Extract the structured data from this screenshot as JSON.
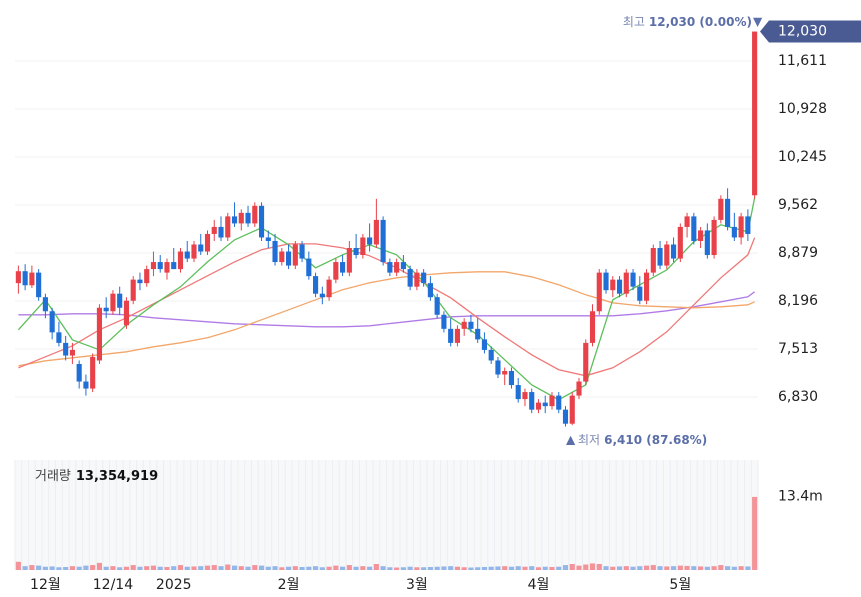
{
  "chart_data": [
    {
      "type": "candlestick",
      "categories": [
        null,
        null,
        null,
        null,
        "12월",
        null,
        null,
        null,
        null,
        null,
        null,
        null,
        null,
        null,
        "12/14",
        null,
        null,
        null,
        null,
        null,
        null,
        null,
        null,
        "2025",
        null,
        null,
        null,
        null,
        null,
        null,
        null,
        null,
        null,
        null,
        null,
        null,
        null,
        null,
        null,
        null,
        "2월",
        null,
        null,
        null,
        null,
        null,
        null,
        null,
        null,
        null,
        null,
        null,
        null,
        null,
        null,
        null,
        null,
        null,
        null,
        "3월",
        null,
        null,
        null,
        null,
        null,
        null,
        null,
        null,
        null,
        null,
        null,
        null,
        null,
        null,
        null,
        null,
        null,
        "4월",
        null,
        null,
        null,
        null,
        null,
        null,
        null,
        null,
        null,
        null,
        null,
        null,
        null,
        null,
        null,
        null,
        null,
        null,
        null,
        null,
        "5월",
        null,
        null,
        null,
        null,
        null,
        null,
        null,
        null,
        null,
        null,
        null
      ],
      "open": [
        8450,
        8620,
        8420,
        8600,
        8250,
        8050,
        7750,
        7600,
        7420,
        7300,
        7050,
        6950,
        7350,
        8100,
        8050,
        8300,
        7850,
        8200,
        8500,
        8450,
        8650,
        8750,
        8600,
        8750,
        8650,
        8900,
        8800,
        9000,
        8900,
        9150,
        9250,
        9100,
        9400,
        9300,
        9450,
        9300,
        9550,
        9100,
        9050,
        8750,
        8900,
        8700,
        9000,
        8800,
        8550,
        8300,
        8250,
        8500,
        8750,
        8600,
        8950,
        8850,
        9100,
        9000,
        9350,
        8750,
        8600,
        8750,
        8650,
        8400,
        8600,
        8450,
        8250,
        8000,
        7800,
        7600,
        7800,
        7900,
        7800,
        7650,
        7500,
        7350,
        7150,
        7200,
        7000,
        6800,
        6900,
        6650,
        6750,
        6700,
        6850,
        6650,
        6450,
        6850,
        7050,
        7600,
        8050,
        8600,
        8350,
        8500,
        8300,
        8600,
        8400,
        8200,
        8600,
        8950,
        8700,
        9000,
        8800,
        9250,
        9400,
        9050,
        9200,
        8850,
        9350,
        9650,
        9250,
        9100,
        9400,
        9700
      ],
      "high": [
        8700,
        8720,
        8700,
        8650,
        8300,
        8100,
        7900,
        7700,
        7600,
        7350,
        7150,
        7450,
        8150,
        8250,
        8350,
        8400,
        8250,
        8550,
        8600,
        8700,
        8900,
        8850,
        8800,
        8950,
        8950,
        9050,
        9050,
        9150,
        9200,
        9350,
        9400,
        9450,
        9600,
        9500,
        9550,
        9600,
        9600,
        9200,
        9150,
        8950,
        9000,
        9050,
        9050,
        8900,
        8600,
        8400,
        8550,
        8800,
        8850,
        9050,
        9150,
        9150,
        9300,
        9650,
        9400,
        8800,
        8800,
        8850,
        8700,
        8650,
        8650,
        8550,
        8300,
        8050,
        7950,
        7850,
        7950,
        8000,
        7950,
        7750,
        7550,
        7400,
        7250,
        7250,
        7100,
        6950,
        6950,
        6800,
        6850,
        6900,
        6900,
        6700,
        6900,
        7100,
        7650,
        8150,
        8650,
        8650,
        8550,
        8550,
        8650,
        8650,
        8550,
        8650,
        9000,
        9050,
        9050,
        9100,
        9300,
        9450,
        9450,
        9250,
        9300,
        9400,
        9700,
        9800,
        9450,
        9450,
        9500,
        12030
      ],
      "low": [
        8300,
        8350,
        8380,
        8200,
        7950,
        7650,
        7550,
        7350,
        7300,
        6950,
        6850,
        6900,
        7300,
        7950,
        8000,
        8000,
        7800,
        8150,
        8350,
        8400,
        8550,
        8600,
        8500,
        8650,
        8600,
        8750,
        8750,
        8850,
        8850,
        9050,
        9050,
        9050,
        9250,
        9200,
        9250,
        9250,
        9050,
        8950,
        8700,
        8700,
        8650,
        8650,
        8750,
        8500,
        8250,
        8150,
        8200,
        8450,
        8550,
        8550,
        8800,
        8800,
        8900,
        8950,
        8700,
        8550,
        8550,
        8600,
        8350,
        8350,
        8400,
        8200,
        7950,
        7750,
        7550,
        7550,
        7700,
        7750,
        7600,
        7450,
        7300,
        7100,
        7000,
        6950,
        6750,
        6700,
        6600,
        6600,
        6600,
        6650,
        6600,
        6410,
        6430,
        6800,
        7000,
        7550,
        8000,
        8300,
        8250,
        8250,
        8250,
        8350,
        8150,
        8150,
        8550,
        8650,
        8650,
        8750,
        8750,
        9100,
        9000,
        8950,
        8800,
        8800,
        9300,
        9200,
        9050,
        9000,
        9050,
        9650
      ],
      "close": [
        8620,
        8420,
        8600,
        8250,
        8050,
        7750,
        7600,
        7420,
        7500,
        7050,
        6950,
        7400,
        8100,
        8050,
        8300,
        8100,
        8200,
        8500,
        8450,
        8650,
        8750,
        8650,
        8750,
        8650,
        8900,
        8800,
        9000,
        8900,
        9150,
        9250,
        9100,
        9400,
        9300,
        9450,
        9300,
        9550,
        9100,
        9050,
        8750,
        8900,
        8700,
        9000,
        8800,
        8550,
        8300,
        8250,
        8500,
        8750,
        8600,
        8950,
        8850,
        9100,
        9000,
        9350,
        8750,
        8600,
        8750,
        8650,
        8400,
        8600,
        8450,
        8250,
        8000,
        7800,
        7600,
        7800,
        7900,
        7800,
        7650,
        7500,
        7350,
        7150,
        7200,
        7000,
        6800,
        6900,
        6650,
        6750,
        6700,
        6850,
        6650,
        6450,
        6850,
        7050,
        7600,
        8050,
        8600,
        8350,
        8500,
        8300,
        8600,
        8400,
        8200,
        8600,
        8950,
        8700,
        9000,
        8800,
        9250,
        9400,
        9050,
        9200,
        8850,
        9350,
        9650,
        9250,
        9100,
        9400,
        9150,
        12030
      ],
      "colors": {
        "up": "#e8414a",
        "down": "#1f6fd6"
      },
      "ylim": [
        6147,
        12479
      ],
      "yticks": [
        {
          "value": 6830,
          "label": "6,830"
        },
        {
          "value": 7513,
          "label": "7,513"
        },
        {
          "value": 8196,
          "label": "8,196"
        },
        {
          "value": 8879,
          "label": "8,879"
        },
        {
          "value": 9562,
          "label": "9,562"
        },
        {
          "value": 10245,
          "label": "10,245"
        },
        {
          "value": 10928,
          "label": "10,928"
        },
        {
          "value": 11611,
          "label": "11,611"
        }
      ],
      "grid": true,
      "lines": {
        "x": [
          0,
          4,
          8,
          12,
          16,
          20,
          24,
          28,
          32,
          36,
          40,
          44,
          48,
          52,
          56,
          60,
          64,
          68,
          72,
          76,
          80,
          84,
          88,
          92,
          96,
          100,
          104,
          108,
          109
        ],
        "series": [
          {
            "color": "#b07be6",
            "values": [
              7999,
              7999,
              8014,
              8014,
              7999,
              7957,
              7929,
              7900,
              7872,
              7858,
              7843,
              7829,
              7829,
              7843,
              7886,
              7929,
              7971,
              7986,
              7986,
              7986,
              7986,
              7986,
              7986,
              8014,
              8057,
              8113,
              8185,
              8256,
              8327
            ]
          },
          {
            "color": "#f2a66a",
            "values": [
              7274,
              7345,
              7388,
              7431,
              7473,
              7545,
              7601,
              7672,
              7786,
              7929,
              8071,
              8213,
              8355,
              8455,
              8526,
              8568,
              8597,
              8611,
              8611,
              8540,
              8426,
              8284,
              8170,
              8128,
              8113,
              8099,
              8113,
              8142,
              8185
            ]
          },
          {
            "color": "#f07878",
            "values": [
              7246,
              7402,
              7559,
              7786,
              7957,
              8156,
              8355,
              8554,
              8753,
              8924,
              9009,
              9009,
              8952,
              8839,
              8668,
              8455,
              8241,
              7957,
              7687,
              7431,
              7218,
              7132,
              7246,
              7473,
              7758,
              8142,
              8526,
              8853,
              9095
            ]
          },
          {
            "color": "#5cbf5c",
            "values": [
              7786,
              8213,
              7644,
              7502,
              7858,
              8142,
              8398,
              8753,
              9066,
              9237,
              8995,
              8668,
              8853,
              8995,
              8853,
              8469,
              7957,
              7715,
              7360,
              7004,
              6791,
              7004,
              8213,
              8426,
              8639,
              9038,
              9280,
              9180,
              9663
            ]
          }
        ]
      },
      "high_note": {
        "text": "최고",
        "label": "12,030 (0.00%)"
      },
      "low_note": {
        "text": "최저",
        "label": "6,410 (87.68%)"
      },
      "last_price": {
        "value": 12030,
        "label": "12,030"
      }
    },
    {
      "type": "bar",
      "title": "거래량",
      "current": {
        "value": 13354919,
        "label": "13,354,919"
      },
      "values": [
        1500000,
        700000,
        900000,
        800000,
        600000,
        650000,
        500000,
        550000,
        700000,
        600000,
        800000,
        900000,
        1300000,
        600000,
        700000,
        500000,
        600000,
        900000,
        600000,
        700000,
        800000,
        600000,
        550000,
        700000,
        900000,
        600000,
        650000,
        700000,
        800000,
        900000,
        700000,
        1000000,
        800000,
        700000,
        600000,
        900000,
        800000,
        600000,
        700000,
        500000,
        600000,
        700000,
        550000,
        600000,
        700000,
        500000,
        600000,
        800000,
        600000,
        900000,
        600000,
        700000,
        600000,
        1100000,
        700000,
        500000,
        450000,
        500000,
        600000,
        500000,
        500000,
        550000,
        600000,
        650000,
        700000,
        600000,
        500000,
        450000,
        500000,
        550000,
        600000,
        650000,
        700000,
        600000,
        700000,
        600000,
        700000,
        500000,
        600000,
        550000,
        600000,
        900000,
        1100000,
        800000,
        1000000,
        1200000,
        1100000,
        700000,
        600000,
        650000,
        700000,
        600000,
        700000,
        800000,
        900000,
        700000,
        650000,
        700000,
        800000,
        750000,
        700000,
        650000,
        600000,
        700000,
        900000,
        700000,
        600000,
        700000,
        650000,
        13354919
      ],
      "ylim": [
        0,
        20100000
      ],
      "yticks": [
        {
          "value": 13400000,
          "label": "13.4m"
        }
      ]
    }
  ]
}
